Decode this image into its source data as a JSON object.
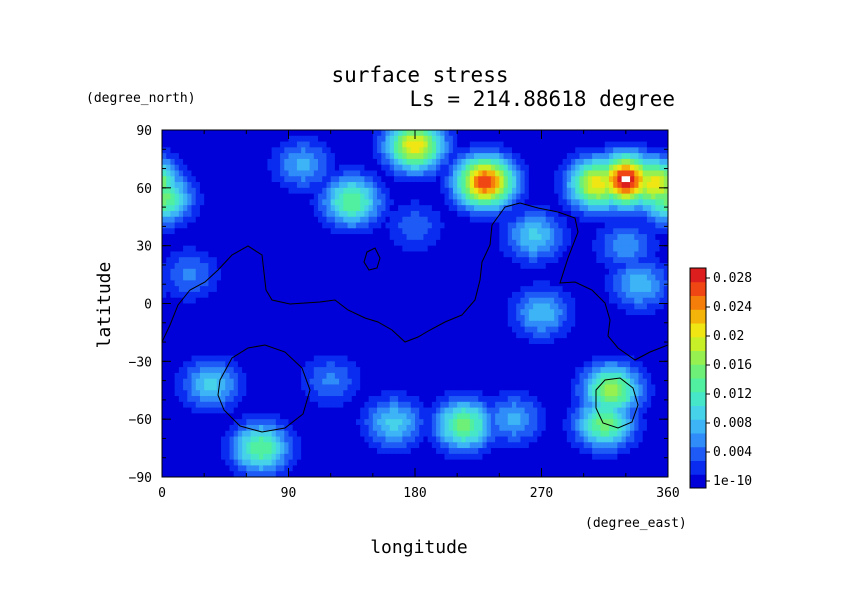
{
  "chart_data": {
    "type": "heatmap",
    "title": "surface stress",
    "subtitle": "Ls = 214.88618 degree",
    "xlabel": "longitude",
    "ylabel": "latitude",
    "x_unit": "(degree_east)",
    "y_unit": "(degree_north)",
    "xlim": [
      0,
      360
    ],
    "ylim": [
      -90,
      90
    ],
    "x_ticks": [
      "0",
      "90",
      "180",
      "270",
      "360"
    ],
    "y_ticks": [
      "90",
      "60",
      "30",
      "0",
      "−30",
      "−60",
      "−90"
    ],
    "colorbar": {
      "labels": [
        "0.028",
        "0.024",
        "0.02",
        "0.016",
        "0.012",
        "0.008",
        "0.004",
        "1e-10"
      ],
      "range": [
        0,
        0.03
      ],
      "colors": [
        "#0000d8",
        "#0a2cf0",
        "#1e5af5",
        "#2f8cf8",
        "#3cb4f5",
        "#46d2e8",
        "#46e6c8",
        "#50f0a0",
        "#6ef078",
        "#96f050",
        "#c8f028",
        "#f0e614",
        "#f5b40a",
        "#f57d0a",
        "#f04614",
        "#dc1e1e"
      ]
    },
    "grid": false,
    "hotspots": [
      {
        "lon": 330,
        "lat": 64,
        "value": 0.03
      },
      {
        "lon": 230,
        "lat": 63,
        "value": 0.028
      },
      {
        "lon": 180,
        "lat": 82,
        "value": 0.022
      },
      {
        "lon": 310,
        "lat": 62,
        "value": 0.022
      },
      {
        "lon": 350,
        "lat": 62,
        "value": 0.022
      },
      {
        "lon": 135,
        "lat": 53,
        "value": 0.015
      },
      {
        "lon": 320,
        "lat": -45,
        "value": 0.018
      },
      {
        "lon": 315,
        "lat": -62,
        "value": 0.016
      },
      {
        "lon": 215,
        "lat": -63,
        "value": 0.016
      },
      {
        "lon": 70,
        "lat": -75,
        "value": 0.015
      },
      {
        "lon": 0,
        "lat": 55,
        "value": 0.016
      },
      {
        "lon": 165,
        "lat": -62,
        "value": 0.01
      },
      {
        "lon": 35,
        "lat": -42,
        "value": 0.01
      },
      {
        "lon": 265,
        "lat": 35,
        "value": 0.01
      },
      {
        "lon": 270,
        "lat": -5,
        "value": 0.009
      },
      {
        "lon": 340,
        "lat": 10,
        "value": 0.009
      },
      {
        "lon": 100,
        "lat": 72,
        "value": 0.008
      },
      {
        "lon": 20,
        "lat": 15,
        "value": 0.006
      },
      {
        "lon": 330,
        "lat": 30,
        "value": 0.007
      },
      {
        "lon": 120,
        "lat": -40,
        "value": 0.006
      },
      {
        "lon": 250,
        "lat": -60,
        "value": 0.008
      },
      {
        "lon": 180,
        "lat": 40,
        "value": 0.005
      }
    ]
  }
}
